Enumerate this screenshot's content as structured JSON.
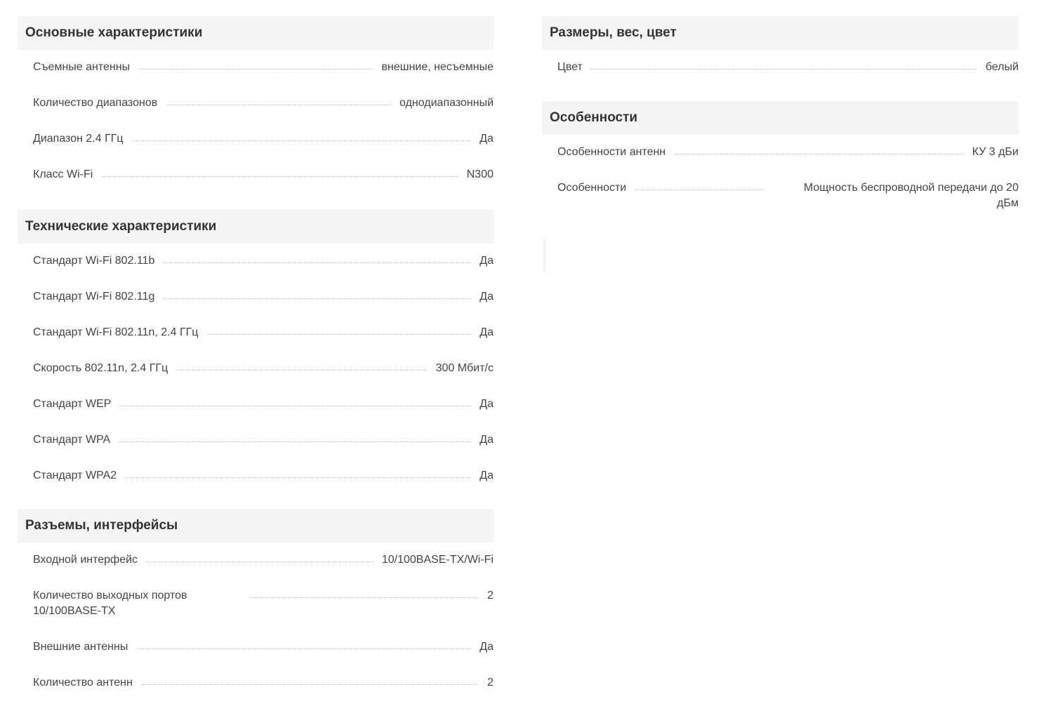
{
  "left_sections": [
    {
      "title": "Основные характеристики",
      "rows": [
        {
          "label": "Съемные антенны",
          "value": "внешние, несъемные"
        },
        {
          "label": "Количество диапазонов",
          "value": "однодиапазонный"
        },
        {
          "label": "Диапазон 2.4 ГГц",
          "value": "Да"
        },
        {
          "label": "Класс Wi-Fi",
          "value": "N300"
        }
      ]
    },
    {
      "title": "Технические характеристики",
      "rows": [
        {
          "label": "Стандарт Wi-Fi 802.11b",
          "value": "Да"
        },
        {
          "label": "Стандарт Wi-Fi 802.11g",
          "value": "Да"
        },
        {
          "label": "Стандарт Wi-Fi 802.11n, 2.4 ГГц",
          "value": "Да"
        },
        {
          "label": "Скорость 802.11n, 2.4 ГГц",
          "value": "300 Мбит/с"
        },
        {
          "label": "Стандарт WEP",
          "value": "Да"
        },
        {
          "label": "Стандарт WPA",
          "value": "Да"
        },
        {
          "label": "Стандарт WPA2",
          "value": "Да"
        }
      ]
    },
    {
      "title": "Разъемы, интерфейсы",
      "rows": [
        {
          "label": "Входной интерфейс",
          "value": "10/100BASE-TX/Wi-Fi"
        },
        {
          "label": "Количество выходных портов 10/100BASE-TX",
          "value": "2"
        },
        {
          "label": "Внешние антенны",
          "value": "Да"
        },
        {
          "label": "Количество антенн",
          "value": "2"
        }
      ]
    }
  ],
  "right_sections": [
    {
      "title": "Размеры, вес, цвет",
      "rows": [
        {
          "label": "Цвет",
          "value": "белый"
        }
      ]
    },
    {
      "title": "Особенности",
      "rows": [
        {
          "label": "Особенности антенн",
          "value": "КУ 3 дБи"
        },
        {
          "label": "Особенности",
          "value": "Мощность беспроводной передачи до 20 дБм"
        }
      ]
    }
  ]
}
